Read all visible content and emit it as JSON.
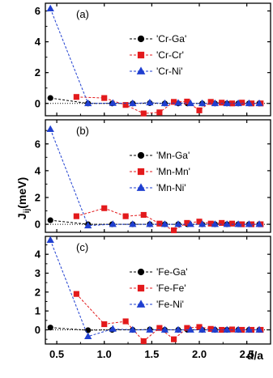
{
  "figure": {
    "xlabel": "d/a",
    "ylabel": "J",
    "ylabel_sub": "ij",
    "ylabel_unit": "(meV)",
    "colors": {
      "black": "#000000",
      "red": "#e31a1c",
      "blue": "#1f3fd0"
    }
  },
  "chart_data": [
    {
      "type": "line",
      "panel_label": "(a)",
      "xlim": [
        0.38,
        2.75
      ],
      "ylim": [
        -0.8,
        6.5
      ],
      "yticks": [
        0,
        2,
        4,
        6
      ],
      "xticks": [
        0.5,
        1.0,
        1.5,
        2.0,
        2.5
      ],
      "legend_position": "center-right",
      "series": [
        {
          "name": "'Cr-Ga'",
          "color": "#000000",
          "marker": "circle",
          "x": [
            0.433,
            0.829,
            1.083,
            1.299,
            1.479,
            1.637,
            1.778,
            1.875,
            2.031,
            2.165,
            2.291,
            2.41,
            2.523,
            2.631
          ],
          "y": [
            0.35,
            0.0,
            0.0,
            0.0,
            0.02,
            0.0,
            0.0,
            0.0,
            0.0,
            0.0,
            0.0,
            0.0,
            0.0,
            0.0
          ]
        },
        {
          "name": "'Cr-Cr'",
          "color": "#e31a1c",
          "marker": "square",
          "x": [
            0.707,
            1.0,
            1.225,
            1.414,
            1.581,
            1.732,
            1.871,
            2.0,
            2.121,
            2.236,
            2.345,
            2.449,
            2.55,
            2.646
          ],
          "y": [
            0.42,
            0.35,
            -0.1,
            -0.65,
            -0.58,
            0.1,
            0.12,
            -0.45,
            0.1,
            0.05,
            0.0,
            0.05,
            0.0,
            0.0
          ]
        },
        {
          "name": "'Cr-Ni'",
          "color": "#1f3fd0",
          "marker": "triangle",
          "x": [
            0.433,
            0.829,
            1.09,
            1.299,
            1.479,
            1.637,
            1.778,
            1.908,
            2.031,
            2.165,
            2.291,
            2.41,
            2.523,
            2.631
          ],
          "y": [
            6.15,
            0.0,
            0.02,
            0.0,
            0.05,
            0.0,
            0.03,
            0.0,
            0.0,
            0.0,
            0.0,
            0.0,
            0.0,
            0.0
          ]
        }
      ]
    },
    {
      "type": "line",
      "panel_label": "(b)",
      "xlim": [
        0.38,
        2.75
      ],
      "ylim": [
        -0.6,
        7.8
      ],
      "yticks": [
        0,
        2,
        4,
        6
      ],
      "xticks": [
        0.5,
        1.0,
        1.5,
        2.0,
        2.5
      ],
      "legend_position": "center-right",
      "series": [
        {
          "name": "'Mn-Ga'",
          "color": "#000000",
          "marker": "circle",
          "x": [
            0.433,
            0.829,
            1.083,
            1.299,
            1.479,
            1.637,
            1.778,
            1.875,
            2.031,
            2.165,
            2.291,
            2.41,
            2.523,
            2.631
          ],
          "y": [
            0.3,
            0.0,
            0.0,
            0.0,
            0.0,
            0.0,
            0.0,
            0.0,
            0.0,
            0.0,
            0.0,
            0.0,
            0.0,
            0.0
          ]
        },
        {
          "name": "'Mn-Mn'",
          "color": "#e31a1c",
          "marker": "square",
          "x": [
            0.707,
            1.0,
            1.225,
            1.414,
            1.581,
            1.732,
            1.871,
            2.0,
            2.121,
            2.236,
            2.345,
            2.449,
            2.55,
            2.646
          ],
          "y": [
            0.6,
            1.2,
            0.6,
            0.7,
            0.05,
            -0.45,
            0.1,
            0.2,
            0.05,
            0.1,
            0.05,
            0.0,
            0.0,
            0.0
          ]
        },
        {
          "name": "'Mn-Ni'",
          "color": "#1f3fd0",
          "marker": "triangle",
          "x": [
            0.433,
            0.829,
            1.09,
            1.299,
            1.479,
            1.637,
            1.778,
            1.908,
            2.031,
            2.165,
            2.291,
            2.41,
            2.523,
            2.631
          ],
          "y": [
            7.1,
            -0.1,
            0.0,
            0.0,
            0.0,
            0.0,
            0.0,
            0.0,
            0.0,
            0.0,
            0.0,
            0.0,
            0.0,
            0.0
          ]
        }
      ]
    },
    {
      "type": "line",
      "panel_label": "(c)",
      "xlim": [
        0.38,
        2.75
      ],
      "ylim": [
        -0.75,
        4.95
      ],
      "yticks": [
        0,
        1,
        2,
        3,
        4
      ],
      "xticks": [
        0.5,
        1.0,
        1.5,
        2.0,
        2.5
      ],
      "legend_position": "center-right",
      "series": [
        {
          "name": "'Fe-Ga'",
          "color": "#000000",
          "marker": "circle",
          "x": [
            0.433,
            0.829,
            1.083,
            1.299,
            1.479,
            1.637,
            1.778,
            1.875,
            2.031,
            2.165,
            2.291,
            2.41,
            2.523,
            2.631
          ],
          "y": [
            0.12,
            -0.02,
            0.0,
            0.0,
            0.02,
            0.0,
            0.0,
            0.0,
            0.0,
            0.0,
            0.0,
            0.0,
            0.0,
            0.0
          ]
        },
        {
          "name": "'Fe-Fe'",
          "color": "#e31a1c",
          "marker": "square",
          "x": [
            0.707,
            1.0,
            1.225,
            1.414,
            1.581,
            1.732,
            1.871,
            2.0,
            2.121,
            2.236,
            2.345,
            2.449,
            2.55,
            2.646
          ],
          "y": [
            1.9,
            0.3,
            0.45,
            -0.6,
            0.1,
            -0.5,
            0.1,
            0.15,
            0.05,
            0.0,
            0.02,
            0.0,
            0.0,
            0.0
          ]
        },
        {
          "name": "'Fe-Ni'",
          "color": "#1f3fd0",
          "marker": "triangle",
          "x": [
            0.433,
            0.829,
            1.09,
            1.299,
            1.479,
            1.637,
            1.778,
            1.908,
            2.031,
            2.165,
            2.291,
            2.41,
            2.523,
            2.631
          ],
          "y": [
            4.75,
            -0.35,
            0.05,
            0.0,
            0.0,
            0.0,
            0.0,
            0.0,
            0.0,
            0.0,
            0.0,
            0.0,
            0.0,
            0.0
          ]
        }
      ]
    }
  ]
}
